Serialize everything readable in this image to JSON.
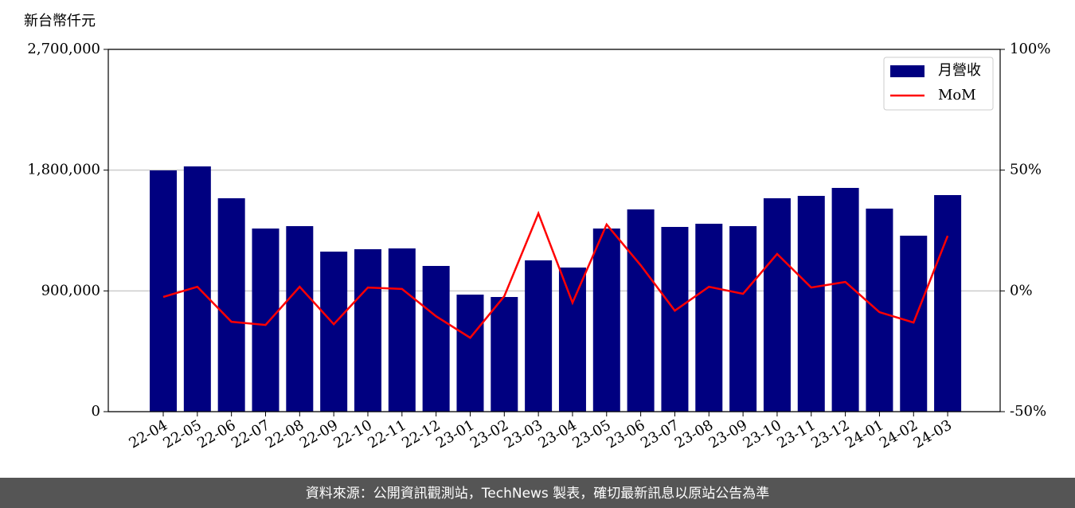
{
  "chart_data": {
    "type": "bar_line",
    "y_label": "新台幣仟元",
    "footer": "資料來源：公開資訊觀測站，TechNews 製表，確切最新訊息以原站公告為準",
    "categories": [
      "22-04",
      "22-05",
      "22-06",
      "22-07",
      "22-08",
      "22-09",
      "22-10",
      "22-11",
      "22-12",
      "23-01",
      "23-02",
      "23-03",
      "23-04",
      "23-05",
      "23-06",
      "23-07",
      "23-08",
      "23-09",
      "23-10",
      "23-11",
      "23-12",
      "24-01",
      "24-02",
      "24-03"
    ],
    "series": [
      {
        "name": "月營收",
        "color": "#000080",
        "type": "bar",
        "values": [
          1798000,
          1827700,
          1590300,
          1364800,
          1382600,
          1192700,
          1210500,
          1216500,
          1085900,
          872300,
          854500,
          1127500,
          1074000,
          1364800,
          1507200,
          1376700,
          1400400,
          1382600,
          1590300,
          1608100,
          1667500,
          1513200,
          1311400,
          1614000
        ]
      },
      {
        "name": "MoM",
        "color": "#ff0000",
        "type": "line",
        "axis": "y2",
        "values": [
          -2.5,
          1.7,
          -12.8,
          -14.1,
          1.7,
          -13.8,
          1.4,
          0.8,
          -10.5,
          -19.4,
          -2.2,
          32.1,
          -4.9,
          27.5,
          10.6,
          -8.2,
          1.7,
          -1.2,
          15.3,
          1.4,
          3.7,
          -8.8,
          -13.1,
          22.8
        ]
      }
    ],
    "ylim": [
      0,
      2700000
    ],
    "yticks": [
      0,
      {
        "value": 900000,
        "label": "900,000"
      },
      {
        "value": 1800000,
        "label": "1,800,000"
      },
      {
        "value": 2700000,
        "label": "2,700,000"
      }
    ],
    "y2lim": [
      -50,
      100
    ],
    "y2ticks": [
      {
        "value": -50,
        "label": "-50%"
      },
      {
        "value": 0,
        "label": "0%"
      },
      {
        "value": 50,
        "label": "50%"
      },
      {
        "value": 100,
        "label": "100%"
      }
    ],
    "grid": true,
    "legend": "upper right"
  }
}
